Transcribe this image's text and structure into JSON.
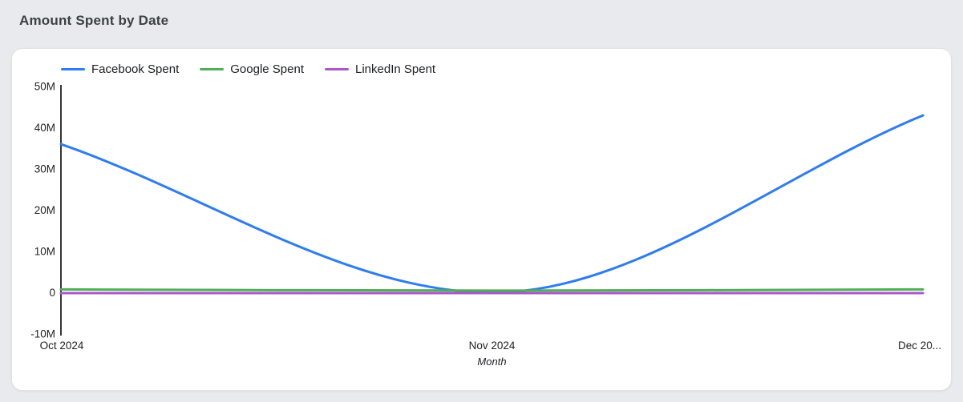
{
  "page": {
    "background": "#e8eaed"
  },
  "header": {
    "title": "Amount Spent by Date"
  },
  "chart_data": {
    "type": "line",
    "title": "Amount Spent by Date",
    "curve": "smooth",
    "grid": false,
    "legend_position": "top",
    "x": [
      "Oct 2024",
      "Nov 2024",
      "Dec 2024"
    ],
    "x_tick_labels": [
      "Oct 2024",
      "Nov 2024",
      "Dec 20..."
    ],
    "xlabel": "Month",
    "ylabel": "",
    "ylim": [
      -10000000,
      50000000
    ],
    "y_ticks": [
      50000000,
      40000000,
      30000000,
      20000000,
      10000000,
      0,
      -10000000
    ],
    "y_tick_labels": [
      "50M",
      "40M",
      "30M",
      "20M",
      "10M",
      "0",
      "-10M"
    ],
    "axis_color": "#1f1f1f",
    "tick_label_color": "#202124",
    "series": [
      {
        "name": "Facebook Spent",
        "color": "#2e7cf5",
        "values": [
          36000000,
          0,
          43000000
        ]
      },
      {
        "name": "Google Spent",
        "color": "#4fae56",
        "values": [
          800000,
          500000,
          800000
        ]
      },
      {
        "name": "LinkedIn Spent",
        "color": "#ab57c8",
        "values": [
          -100000,
          -100000,
          -100000
        ]
      }
    ]
  }
}
